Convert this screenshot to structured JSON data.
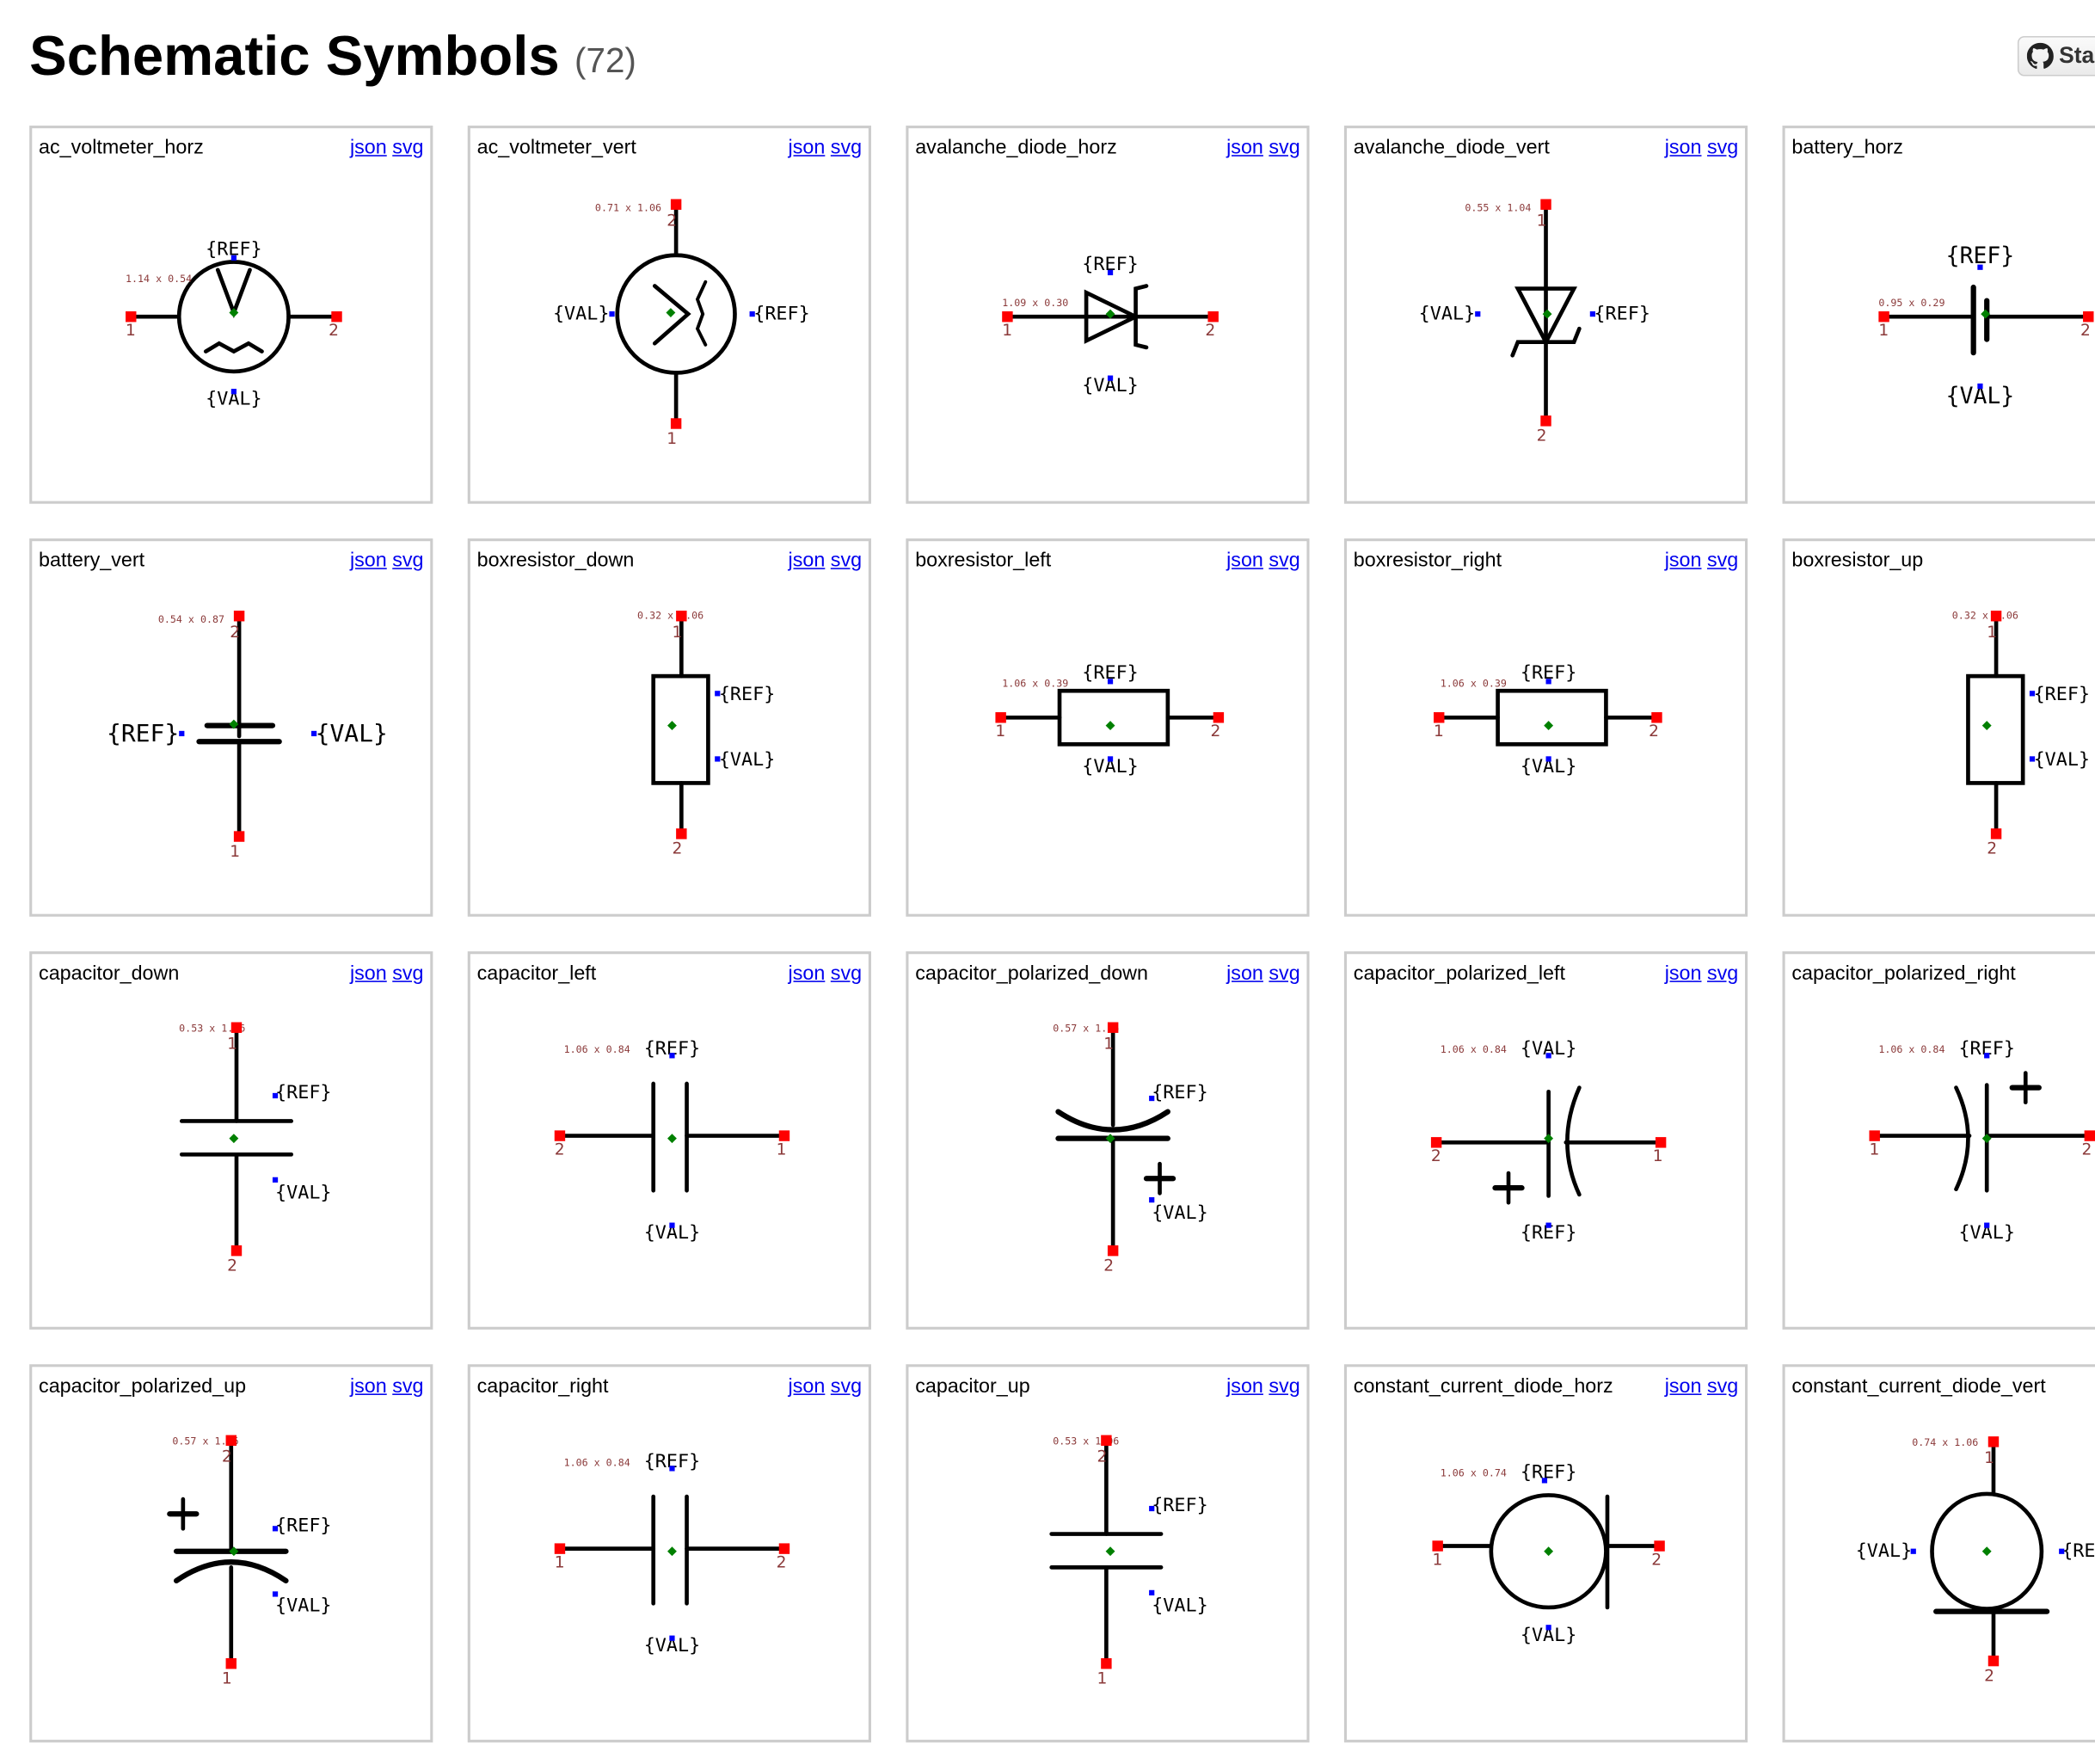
{
  "header": {
    "title": "Schematic Symbols",
    "count": "(72)",
    "star_label": "Star",
    "star_icon": "github-icon"
  },
  "links": {
    "json": "json",
    "svg": "svg"
  },
  "colors": {
    "pin": "#ff0000",
    "pin_label": "#8b3a3a",
    "anchor": "#0000ff",
    "center": "#008000",
    "stroke": "#000000",
    "link": "#0000ee",
    "border": "#cccccc"
  },
  "cards": [
    {
      "name": "ac_voltmeter_horz",
      "dims": "1.14 x 0.54",
      "ref": "{REF}",
      "val": "{VAL}",
      "pins": [
        "1",
        "2"
      ]
    },
    {
      "name": "ac_voltmeter_vert",
      "dims": "0.71 x 1.06",
      "ref": "{REF}",
      "val": "{VAL}",
      "pins": [
        "2",
        "1"
      ]
    },
    {
      "name": "avalanche_diode_horz",
      "dims": "1.09 x 0.30",
      "ref": "{REF}",
      "val": "{VAL}",
      "pins": [
        "1",
        "2"
      ]
    },
    {
      "name": "avalanche_diode_vert",
      "dims": "0.55 x 1.04",
      "ref": "{REF}",
      "val": "{VAL}",
      "pins": [
        "1",
        "2"
      ]
    },
    {
      "name": "battery_horz",
      "dims": "0.95 x 0.29",
      "ref": "{REF}",
      "val": "{VAL}",
      "pins": [
        "1",
        "2"
      ]
    },
    {
      "name": "battery_vert",
      "dims": "0.54 x 0.87",
      "ref": "{REF}",
      "val": "{VAL}",
      "pins": [
        "2",
        "1"
      ]
    },
    {
      "name": "boxresistor_down",
      "dims": "0.32 x 1.06",
      "ref": "{REF}",
      "val": "{VAL}",
      "pins": [
        "1",
        "2"
      ]
    },
    {
      "name": "boxresistor_left",
      "dims": "1.06 x 0.39",
      "ref": "{REF}",
      "val": "{VAL}",
      "pins": [
        "1",
        "2"
      ]
    },
    {
      "name": "boxresistor_right",
      "dims": "1.06 x 0.39",
      "ref": "{REF}",
      "val": "{VAL}",
      "pins": [
        "1",
        "2"
      ]
    },
    {
      "name": "boxresistor_up",
      "dims": "0.32 x 1.06",
      "ref": "{REF}",
      "val": "{VAL}",
      "pins": [
        "1",
        "2"
      ]
    },
    {
      "name": "capacitor_down",
      "dims": "0.53 x 1.06",
      "ref": "{REF}",
      "val": "{VAL}",
      "pins": [
        "1",
        "2"
      ]
    },
    {
      "name": "capacitor_left",
      "dims": "1.06 x 0.84",
      "ref": "{REF}",
      "val": "{VAL}",
      "pins": [
        "2",
        "1"
      ]
    },
    {
      "name": "capacitor_polarized_down",
      "dims": "0.57 x 1.06",
      "ref": "{REF}",
      "val": "{VAL}",
      "pins": [
        "1",
        "2"
      ]
    },
    {
      "name": "capacitor_polarized_left",
      "dims": "1.06 x 0.84",
      "ref": "{REF}",
      "val": "{VAL}",
      "pins": [
        "2",
        "1"
      ]
    },
    {
      "name": "capacitor_polarized_right",
      "dims": "1.06 x 0.84",
      "ref": "{REF}",
      "val": "{VAL}",
      "pins": [
        "1",
        "2"
      ]
    },
    {
      "name": "capacitor_polarized_up",
      "dims": "0.57 x 1.06",
      "ref": "{REF}",
      "val": "{VAL}",
      "pins": [
        "2",
        "1"
      ]
    },
    {
      "name": "capacitor_right",
      "dims": "1.06 x 0.84",
      "ref": "{REF}",
      "val": "{VAL}",
      "pins": [
        "1",
        "2"
      ]
    },
    {
      "name": "capacitor_up",
      "dims": "0.53 x 1.06",
      "ref": "{REF}",
      "val": "{VAL}",
      "pins": [
        "2",
        "1"
      ]
    },
    {
      "name": "constant_current_diode_horz",
      "dims": "1.06 x 0.74",
      "ref": "{REF}",
      "val": "{VAL}",
      "pins": [
        "1",
        "2"
      ]
    },
    {
      "name": "constant_current_diode_vert",
      "dims": "0.74 x 1.06",
      "ref": "{REF}",
      "val": "{VAL}",
      "pins": [
        "1",
        "2"
      ]
    }
  ]
}
